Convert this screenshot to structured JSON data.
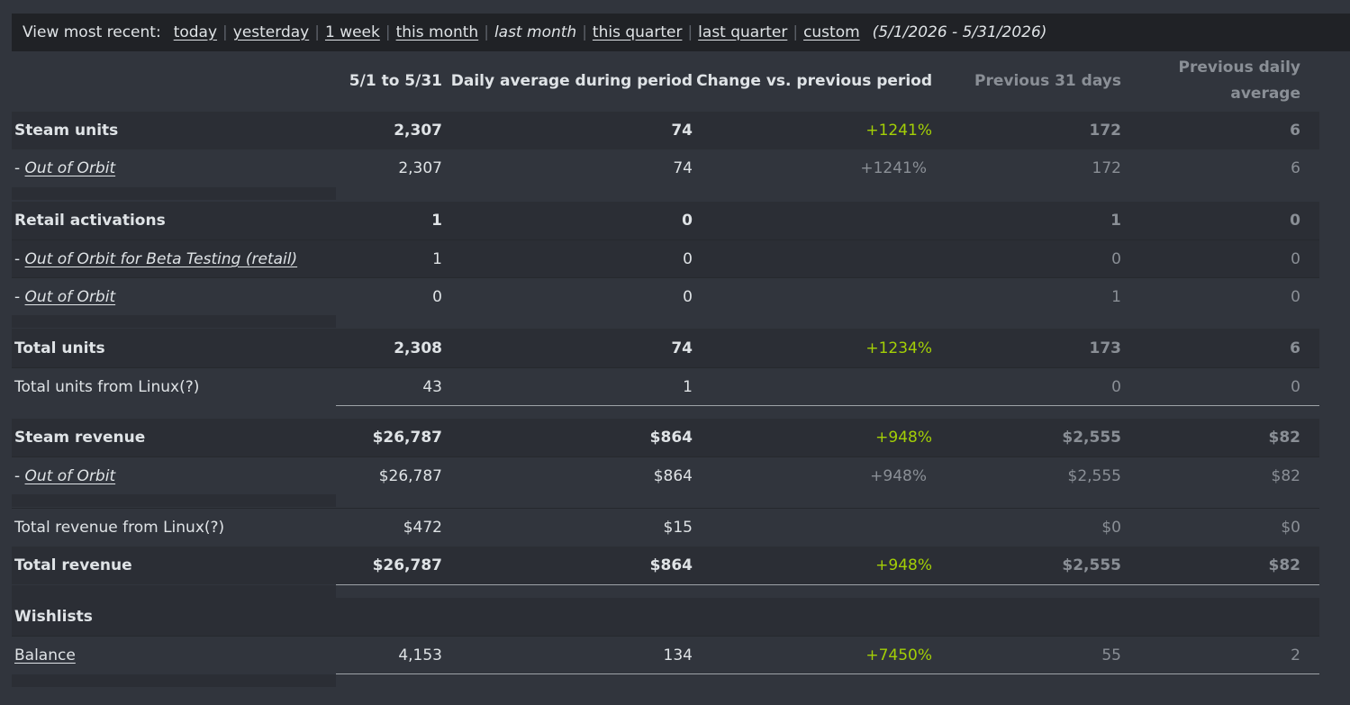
{
  "topbar": {
    "label": "View most recent:",
    "links": [
      "today",
      "yesterday",
      "1 week",
      "this month",
      "last month",
      "this quarter",
      "last quarter",
      "custom"
    ],
    "current": "last month",
    "range": "(5/1/2026 - 5/31/2026)"
  },
  "headers": {
    "period": "5/1 to 5/31",
    "daily_avg": "Daily average during period",
    "change": "Change vs. previous period",
    "prev_days": "Previous 31 days",
    "prev_avg": "Previous daily average"
  },
  "rows": {
    "steam_units": {
      "label": "Steam units",
      "period": "2,307",
      "daily": "74",
      "change": "+1241%",
      "prev": "172",
      "prev_avg": "6"
    },
    "steam_units_ooo": {
      "label": "Out of Orbit",
      "period": "2,307",
      "daily": "74",
      "change": "+1241%",
      "prev": "172",
      "prev_avg": "6"
    },
    "retail": {
      "label": "Retail activations",
      "period": "1",
      "daily": "0",
      "change": "",
      "prev": "1",
      "prev_avg": "0"
    },
    "retail_beta": {
      "label": "Out of Orbit for Beta Testing (retail)",
      "period": "1",
      "daily": "0",
      "change": "",
      "prev": "0",
      "prev_avg": "0"
    },
    "retail_ooo": {
      "label": "Out of Orbit",
      "period": "0",
      "daily": "0",
      "change": "",
      "prev": "1",
      "prev_avg": "0"
    },
    "total_units": {
      "label": "Total units",
      "period": "2,308",
      "daily": "74",
      "change": "+1234%",
      "prev": "173",
      "prev_avg": "6"
    },
    "linux_units": {
      "label": "Total units from Linux(?)",
      "period": "43",
      "daily": "1",
      "change": "",
      "prev": "0",
      "prev_avg": "0"
    },
    "steam_revenue": {
      "label": "Steam revenue",
      "period": "$26,787",
      "daily": "$864",
      "change": "+948%",
      "prev": "$2,555",
      "prev_avg": "$82"
    },
    "steam_revenue_ooo": {
      "label": "Out of Orbit",
      "period": "$26,787",
      "daily": "$864",
      "change": "+948%",
      "prev": "$2,555",
      "prev_avg": "$82"
    },
    "linux_revenue": {
      "label": "Total revenue from Linux(?)",
      "period": "$472",
      "daily": "$15",
      "change": "",
      "prev": "$0",
      "prev_avg": "$0"
    },
    "total_revenue": {
      "label": "Total revenue",
      "period": "$26,787",
      "daily": "$864",
      "change": "+948%",
      "prev": "$2,555",
      "prev_avg": "$82"
    },
    "wishlists": {
      "label": "Wishlists"
    },
    "balance": {
      "label": "Balance",
      "period": "4,153",
      "daily": "134",
      "change": "+7450%",
      "prev": "55",
      "prev_avg": "2"
    }
  },
  "dash": "-",
  "colors": {
    "background": "#31353d",
    "topbar": "#202226",
    "positive": "#a3cf06",
    "muted": "#8a8f96",
    "text": "#dfe3e6"
  }
}
